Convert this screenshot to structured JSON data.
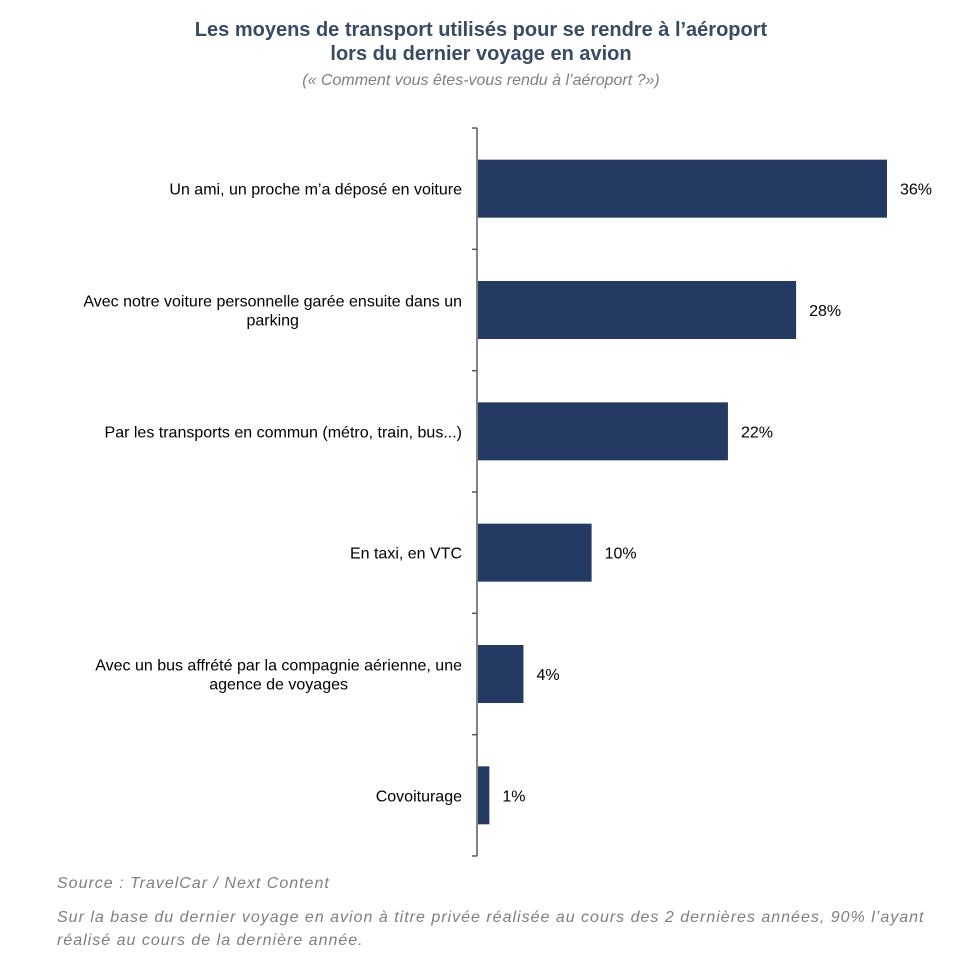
{
  "header": {
    "title_line1": "Les moyens de transport utilisés pour se rendre à l’aéroport",
    "title_line2": "lors du dernier voyage en avion",
    "subtitle": "(« Comment vous êtes-vous rendu à l’aéroport ?»)"
  },
  "footer": {
    "source": "Source : TravelCar / Next Content",
    "note": "Sur la base du dernier voyage en avion à titre privée réalisée au cours des 2 dernières années, 90% l’ayant réalisé au cours de la dernière année."
  },
  "colors": {
    "bar": "#243a63",
    "title": "#3b4a63",
    "muted": "#7f7f7f",
    "axis": "#595959"
  },
  "chart_data": {
    "type": "bar",
    "orientation": "horizontal",
    "title": "Les moyens de transport utilisés pour se rendre à l’aéroport lors du dernier voyage en avion",
    "subtitle": "(« Comment vous êtes-vous rendu à l’aéroport ?»)",
    "categories": [
      [
        "Un ami, un proche m’a déposé en voiture"
      ],
      [
        "Avec notre voiture personnelle garée ensuite dans un",
        "parking"
      ],
      [
        "Par les transports en commun (métro, train, bus...)"
      ],
      [
        "En taxi, en VTC"
      ],
      [
        "Avec un bus affrété par la compagnie aérienne, une",
        "agence de voyages"
      ],
      [
        "Covoiturage"
      ]
    ],
    "values": [
      36,
      28,
      22,
      10,
      4,
      1
    ],
    "value_labels": [
      "36%",
      "28%",
      "22%",
      "10%",
      "4%",
      "1%"
    ],
    "unit": "%",
    "xlim": [
      0,
      36
    ],
    "grid": false,
    "legend": "none"
  }
}
